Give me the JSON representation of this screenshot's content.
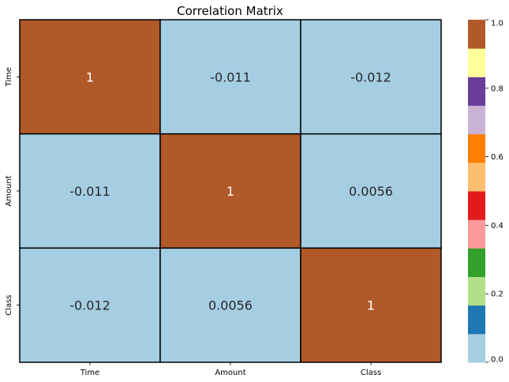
{
  "chart_data": {
    "type": "heatmap",
    "title": "Correlation Matrix",
    "xlabel": "",
    "ylabel": "",
    "x_categories": [
      "Time",
      "Amount",
      "Class"
    ],
    "y_categories": [
      "Time",
      "Amount",
      "Class"
    ],
    "values": [
      [
        1.0,
        -0.011,
        -0.012
      ],
      [
        -0.011,
        1.0,
        0.0056
      ],
      [
        -0.012,
        0.0056,
        1.0
      ]
    ],
    "annotations": [
      [
        "1",
        "-0.011",
        "-0.012"
      ],
      [
        "-0.011",
        "1",
        "0.0056"
      ],
      [
        "-0.012",
        "0.0056",
        "1"
      ]
    ],
    "colorbar": {
      "vmin": 0.0,
      "vmax": 1.0,
      "ticks": [
        0.0,
        0.2,
        0.4,
        0.6,
        0.8,
        1.0
      ],
      "tick_labels": [
        "0.0",
        "0.2",
        "0.4",
        "0.6",
        "0.8",
        "1.0"
      ],
      "colormap": "Paired",
      "colors": [
        "#a6cee3",
        "#1f78b4",
        "#b2df8a",
        "#33a02c",
        "#fb9a99",
        "#e31a1c",
        "#fdbf6f",
        "#ff7f00",
        "#cab2d6",
        "#6a3d9a",
        "#ffff99",
        "#b15928"
      ]
    },
    "cell_border_color": "#000000",
    "annotation_colors": {
      "high": "#ffffff",
      "low": "#262626"
    },
    "legend": "right-colorbar"
  }
}
